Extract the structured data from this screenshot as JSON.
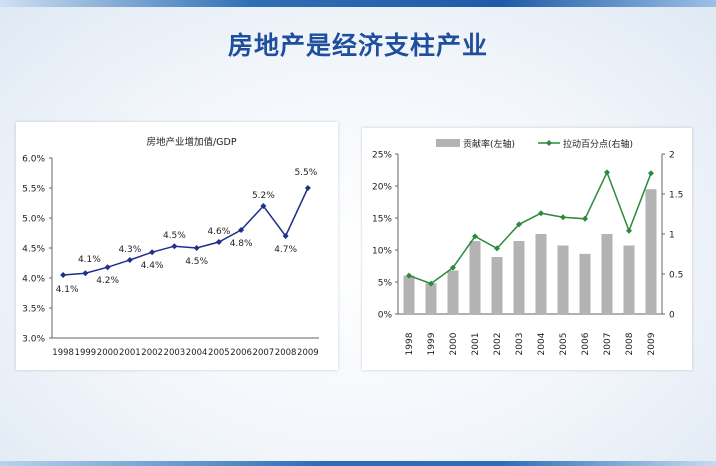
{
  "slide": {
    "title": "房地产是经济支柱产业"
  },
  "chart_data": [
    {
      "type": "line",
      "title": "房地产业增加值/GDP",
      "xlabel": "",
      "ylabel": "",
      "categories": [
        "1998",
        "1999",
        "2000",
        "2001",
        "2002",
        "2003",
        "2004",
        "2005",
        "2006",
        "2007",
        "2008",
        "2009"
      ],
      "values": [
        4.05,
        4.08,
        4.18,
        4.3,
        4.43,
        4.53,
        4.5,
        4.6,
        4.8,
        5.2,
        4.7,
        5.5
      ],
      "data_labels": [
        "4.1%",
        "4.1%",
        "4.2%",
        "4.3%",
        "4.4%",
        "4.5%",
        "4.5%",
        "4.6%",
        "4.8%",
        "5.2%",
        "4.7%",
        "5.5%"
      ],
      "ylim": [
        3.0,
        6.0
      ],
      "ytick_labels": [
        "3.0%",
        "3.5%",
        "4.0%",
        "4.5%",
        "5.0%",
        "5.5%",
        "6.0%"
      ],
      "color": "#1f2f8a"
    },
    {
      "type": "bar+line",
      "categories": [
        "1998",
        "1999",
        "2000",
        "2001",
        "2002",
        "2003",
        "2004",
        "2005",
        "2006",
        "2007",
        "2008",
        "2009"
      ],
      "series": [
        {
          "name": "贡献率(左轴)",
          "type": "bar",
          "axis": "left",
          "values": [
            6.0,
            4.8,
            6.8,
            11.4,
            8.9,
            11.4,
            12.5,
            10.7,
            9.4,
            12.5,
            10.7,
            19.5
          ],
          "color": "#b3b3b3"
        },
        {
          "name": "拉动百分点(右轴)",
          "type": "line",
          "axis": "right",
          "values": [
            0.48,
            0.38,
            0.58,
            0.97,
            0.82,
            1.12,
            1.26,
            1.21,
            1.19,
            1.77,
            1.04,
            1.76
          ],
          "color": "#2d8a3c"
        }
      ],
      "ylim_left": [
        0,
        25
      ],
      "ytick_labels_left": [
        "0%",
        "5%",
        "10%",
        "15%",
        "20%",
        "25%"
      ],
      "ylim_right": [
        0,
        2
      ],
      "ytick_labels_right": [
        "0",
        "0.5",
        "1",
        "1.5",
        "2"
      ]
    }
  ]
}
